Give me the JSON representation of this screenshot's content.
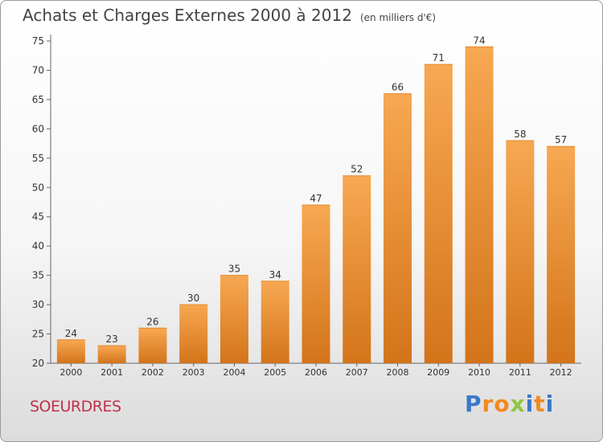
{
  "chart_data": {
    "type": "bar",
    "title": "Achats et Charges Externes 2000 à 2012",
    "subtitle": "(en milliers d'€)",
    "categories": [
      "2000",
      "2001",
      "2002",
      "2003",
      "2004",
      "2005",
      "2006",
      "2007",
      "2008",
      "2009",
      "2010",
      "2011",
      "2012"
    ],
    "values": [
      24,
      23,
      26,
      30,
      35,
      34,
      47,
      52,
      66,
      71,
      74,
      58,
      57
    ],
    "ylim": [
      20,
      75
    ],
    "yticks": [
      20,
      25,
      30,
      35,
      40,
      45,
      50,
      55,
      60,
      65,
      70,
      75
    ],
    "grid": false,
    "bar_color_top": "#f7a852",
    "bar_color_bottom": "#d3741a"
  },
  "footer": {
    "commune": "SOEURDRES",
    "logo": "Proxiti"
  },
  "colors": {
    "commune": "#c0304a",
    "logo_letters": [
      "#3a78c8",
      "#f28a1e",
      "#f28a1e",
      "#8cc63f",
      "#3a78c8",
      "#f28a1e",
      "#3a78c8"
    ]
  }
}
